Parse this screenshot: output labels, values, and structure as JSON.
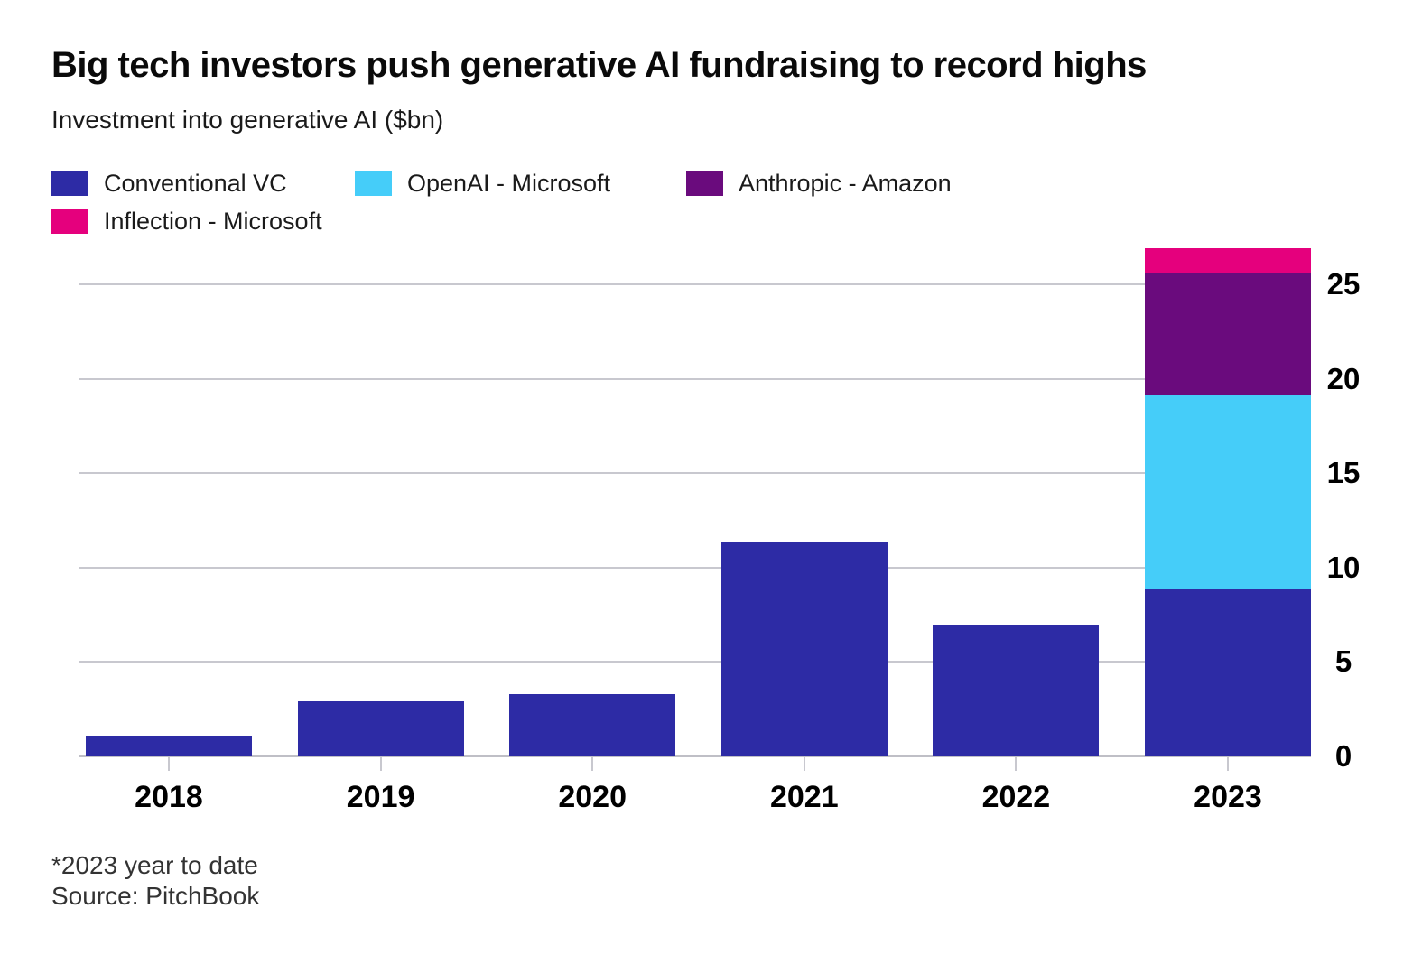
{
  "header": {
    "title": "Big tech investors push generative AI fundraising to record highs",
    "subtitle": "Investment into generative AI ($bn)"
  },
  "legend": {
    "items": [
      {
        "label": "Conventional VC",
        "color": "#2D2BA5"
      },
      {
        "label": "OpenAI - Microsoft",
        "color": "#45CDF9"
      },
      {
        "label": "Anthropic - Amazon",
        "color": "#6A0B7D"
      },
      {
        "label": "Inflection - Microsoft",
        "color": "#E5007D"
      }
    ]
  },
  "footer": {
    "note": "*2023 year to date",
    "source": "Source: PitchBook"
  },
  "chart_data": {
    "type": "bar",
    "stacked": true,
    "title": "Big tech investors push generative AI fundraising to record highs",
    "ylabel": "Investment into generative AI ($bn)",
    "categories": [
      "2018",
      "2019",
      "2020",
      "2021",
      "2022",
      "2023"
    ],
    "series": [
      {
        "name": "Conventional VC",
        "color": "#2D2BA5",
        "values": [
          1.1,
          2.9,
          3.3,
          11.4,
          7.0,
          8.9
        ]
      },
      {
        "name": "OpenAI - Microsoft",
        "color": "#45CDF9",
        "values": [
          0,
          0,
          0,
          0,
          0,
          10.2
        ]
      },
      {
        "name": "Anthropic - Amazon",
        "color": "#6A0B7D",
        "values": [
          0,
          0,
          0,
          0,
          0,
          6.5
        ]
      },
      {
        "name": "Inflection - Microsoft",
        "color": "#E5007D",
        "values": [
          0,
          0,
          0,
          0,
          0,
          1.3
        ]
      }
    ],
    "totals_by_year": [
      1.1,
      2.9,
      3.3,
      11.4,
      7.0,
      26.9
    ],
    "yticks": [
      0,
      5,
      10,
      15,
      20,
      25
    ],
    "ylim": [
      0,
      27.2
    ],
    "grid": true,
    "legend_position": "top-left",
    "axis_side": "right",
    "footnote": "*2023 year to date",
    "source": "Source: PitchBook"
  }
}
